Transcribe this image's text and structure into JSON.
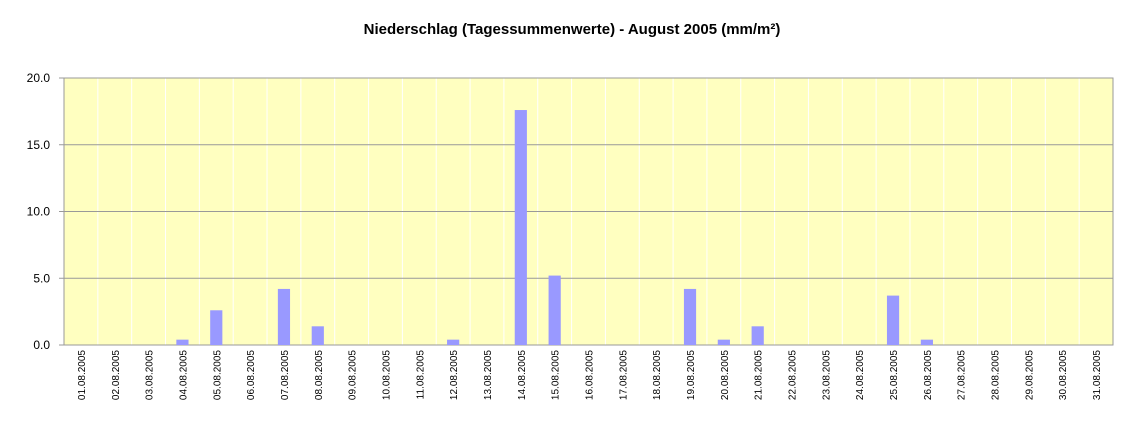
{
  "chart_data": {
    "type": "bar",
    "title": "Niederschlag (Tagessummenwerte) - August 2005 (mm/m²)",
    "categories": [
      "01.08.2005",
      "02.08.2005",
      "03.08.2005",
      "04.08.2005",
      "05.08.2005",
      "06.08.2005",
      "07.08.2005",
      "08.08.2005",
      "09.08.2005",
      "10.08.2005",
      "11.08.2005",
      "12.08.2005",
      "13.08.2005",
      "14.08.2005",
      "15.08.2005",
      "16.08.2005",
      "17.08.2005",
      "18.08.2005",
      "19.08.2005",
      "20.08.2005",
      "21.08.2005",
      "22.08.2005",
      "23.08.2005",
      "24.08.2005",
      "25.08.2005",
      "26.08.2005",
      "27.08.2005",
      "28.08.2005",
      "29.08.2005",
      "30.08.2005",
      "31.08.2005"
    ],
    "values": [
      0,
      0,
      0,
      0.4,
      2.6,
      0,
      4.2,
      1.4,
      0,
      0,
      0,
      0.4,
      0,
      17.6,
      5.2,
      0,
      0,
      0,
      4.2,
      0.4,
      1.4,
      0,
      0,
      0,
      3.7,
      0.4,
      0,
      0,
      0,
      0,
      0
    ],
    "color": "#9999ff",
    "background": "#ffffc0",
    "ylim": [
      0,
      20
    ],
    "yticks": [
      {
        "value": 0,
        "label": "0.0"
      },
      {
        "value": 5,
        "label": "5.0"
      },
      {
        "value": 10,
        "label": "10.0"
      },
      {
        "value": 15,
        "label": "15.0"
      },
      {
        "value": 20,
        "label": "20.0"
      }
    ],
    "grid": true
  }
}
